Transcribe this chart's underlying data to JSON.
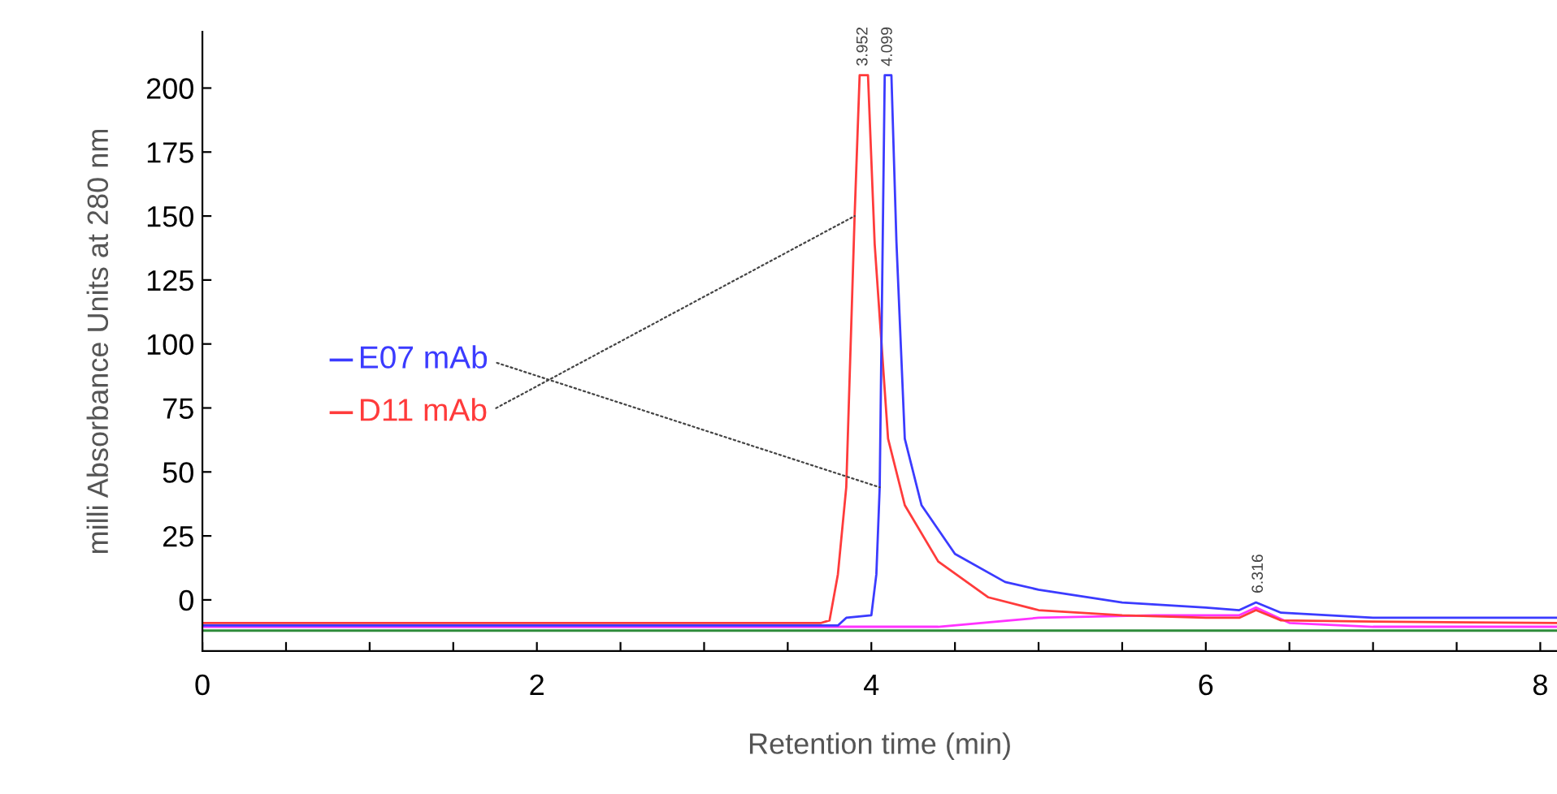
{
  "chart_data": {
    "type": "line",
    "xlabel": "Retention time (min)",
    "ylabel": "milli Absorbance Units at 280 nm",
    "xlim": [
      0,
      8.1
    ],
    "ylim": [
      -20,
      222
    ],
    "xticks": [
      0,
      {
        "value": 0.5,
        "label": null
      },
      {
        "value": 1,
        "label": null
      },
      {
        "value": 1.5,
        "label": null
      },
      2,
      {
        "value": 2.5,
        "label": null
      },
      {
        "value": 3,
        "label": null
      },
      {
        "value": 3.5,
        "label": null
      },
      4,
      {
        "value": 4.5,
        "label": null
      },
      {
        "value": 5,
        "label": null
      },
      {
        "value": 5.5,
        "label": null
      },
      6,
      {
        "value": 6.5,
        "label": null
      },
      {
        "value": 7,
        "label": null
      },
      {
        "value": 7.5,
        "label": null
      },
      8
    ],
    "yticks": [
      0,
      25,
      50,
      75,
      100,
      125,
      150,
      175,
      200
    ],
    "grid": false,
    "legend": "left",
    "marker": "none",
    "line_style": "solid",
    "series": [
      {
        "color": "#2e8b3a",
        "x": [
          0,
          2,
          4,
          6,
          8.1
        ],
        "values": [
          -12,
          -12,
          -12,
          -12,
          -12
        ]
      },
      {
        "color": "#ff33ff",
        "x": [
          0,
          4.4,
          5.0,
          5.7,
          6.2,
          6.3,
          6.4,
          6.5,
          7,
          8.1
        ],
        "values": [
          -10.5,
          -10.5,
          -7,
          -6,
          -6,
          -3,
          -6,
          -9,
          -10.5,
          -10.5
        ]
      },
      {
        "name": "D11 mAb",
        "color": "#ff3b3b",
        "x": [
          0,
          3.7,
          3.75,
          3.8,
          3.85,
          3.9,
          3.93,
          3.98,
          4.02,
          4.1,
          4.2,
          4.4,
          4.7,
          5.0,
          5.5,
          6.0,
          6.2,
          6.3,
          6.45,
          7,
          8.1
        ],
        "values": [
          -9,
          -9,
          -8,
          10,
          44,
          150,
          205,
          205,
          139,
          63,
          37,
          15,
          1,
          -4,
          -6,
          -7,
          -7,
          -4,
          -8,
          -8.5,
          -9
        ]
      },
      {
        "name": "E07 mAb",
        "color": "#3b3bff",
        "x": [
          0,
          3.8,
          3.85,
          4.0,
          4.03,
          4.05,
          4.08,
          4.12,
          4.15,
          4.2,
          4.3,
          4.5,
          4.8,
          5.0,
          5.5,
          6.0,
          6.2,
          6.3,
          6.45,
          7,
          8.1
        ],
        "values": [
          -10,
          -10,
          -7,
          -6,
          10,
          44,
          205,
          205,
          140,
          63,
          37,
          18,
          7,
          4,
          -1,
          -3,
          -4,
          -1,
          -5,
          -7,
          -7
        ]
      }
    ],
    "annotations": [
      {
        "text": "3.952",
        "x": 3.952,
        "y": 205
      },
      {
        "text": "4.099",
        "x": 4.099,
        "y": 205
      },
      {
        "text": "6.316",
        "x": 6.316,
        "y": -1
      }
    ]
  }
}
